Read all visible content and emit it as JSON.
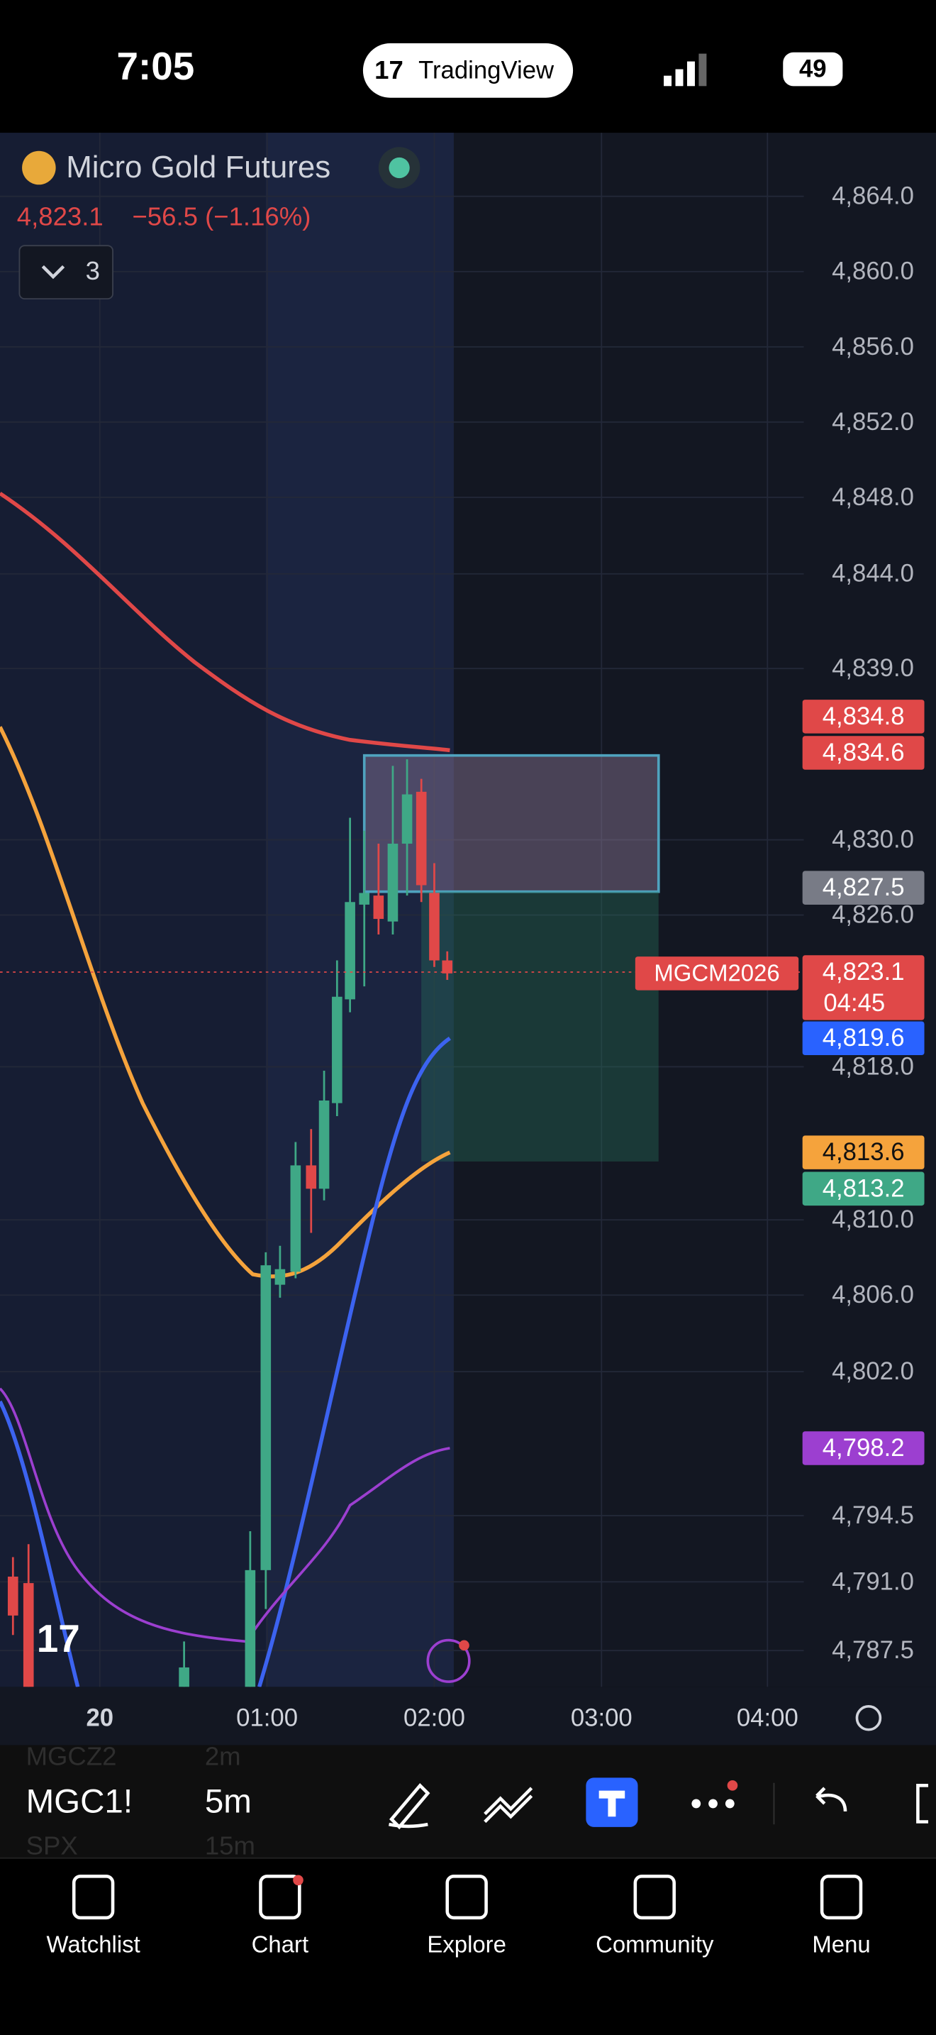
{
  "status_bar": {
    "time": "7:05",
    "app": "TradingView",
    "battery": "49"
  },
  "symbol_header": {
    "name": "Micro Gold Futures",
    "price": "4,823.1",
    "change": "−56.5 (−1.16%)",
    "indicator_count": "3"
  },
  "price_axis": [
    "4,864.0",
    "4,860.0",
    "4,856.0",
    "4,852.0",
    "4,848.0",
    "4,844.0",
    "4,839.0",
    "4,830.0",
    "4,826.0",
    "4,818.0",
    "4,810.0",
    "4,806.0",
    "4,802.0",
    "4,794.5",
    "4,791.0",
    "4,787.5"
  ],
  "price_tags": [
    "4,834.8",
    "4,834.6",
    "4,827.5",
    "4,823.1",
    "4,819.6",
    "4,813.6",
    "4,813.2",
    "4,798.2"
  ],
  "countdown": "04:45",
  "symbol_tag": "MGCM2026",
  "time_axis": [
    "20",
    "01:00",
    "02:00",
    "03:00",
    "04:00"
  ],
  "toolbar": {
    "symbol": "MGC1!",
    "interval": "5m",
    "ghost_items": [
      "MGCZ2",
      "2m",
      "SPX",
      "15m"
    ]
  },
  "nav": [
    "Watchlist",
    "Chart",
    "Explore",
    "Community",
    "Menu"
  ]
}
